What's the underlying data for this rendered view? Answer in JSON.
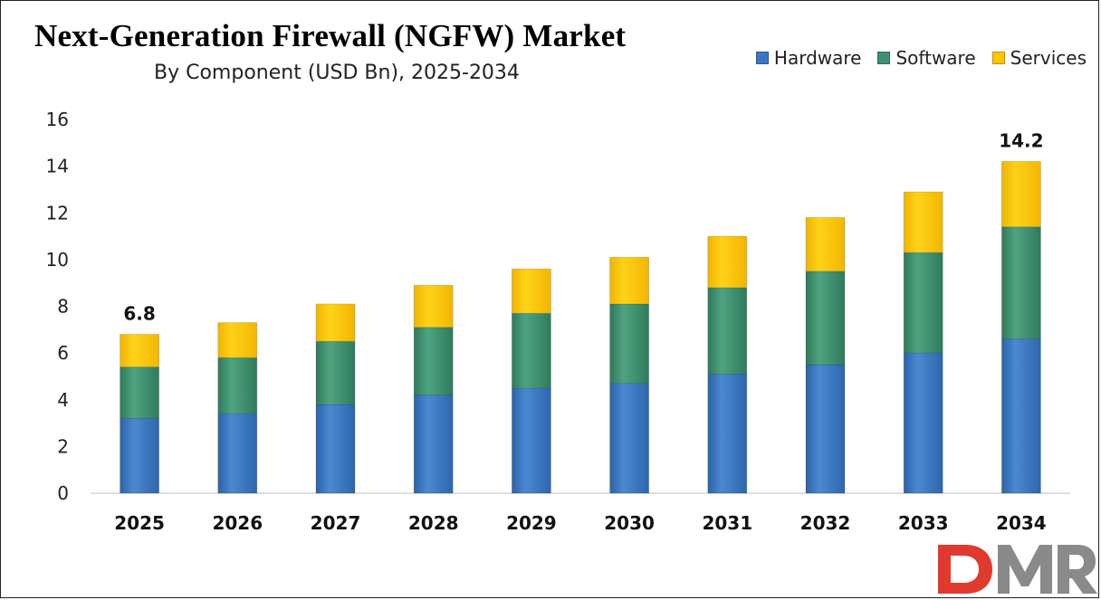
{
  "chart_data": {
    "type": "bar",
    "stacked": true,
    "title": "Next-Generation Firewall (NGFW) Market",
    "subtitle": "By Component (USD Bn), 2025-2034",
    "xlabel": "",
    "ylabel": "",
    "ylim": [
      0,
      16
    ],
    "yticks": [
      0,
      2,
      4,
      6,
      8,
      10,
      12,
      14,
      16
    ],
    "grid": false,
    "legend_position": "top-right",
    "categories": [
      "2025",
      "2026",
      "2027",
      "2028",
      "2029",
      "2030",
      "2031",
      "2032",
      "2033",
      "2034"
    ],
    "series": [
      {
        "name": "Hardware",
        "color": "#3a77c0",
        "values": [
          3.2,
          3.4,
          3.8,
          4.2,
          4.5,
          4.7,
          5.1,
          5.5,
          6.0,
          6.6
        ]
      },
      {
        "name": "Software",
        "color": "#3f9070",
        "values": [
          2.2,
          2.4,
          2.7,
          2.9,
          3.2,
          3.4,
          3.7,
          4.0,
          4.3,
          4.8
        ]
      },
      {
        "name": "Services",
        "color": "#ffc600",
        "values": [
          1.4,
          1.5,
          1.6,
          1.8,
          1.9,
          2.0,
          2.2,
          2.3,
          2.6,
          2.8
        ]
      }
    ],
    "annotations": [
      {
        "category": "2025",
        "text": "6.8"
      },
      {
        "category": "2034",
        "text": "14.2"
      }
    ]
  },
  "logo": {
    "text": "DMR",
    "colors": [
      "#e03a2f",
      "#8a8a8a"
    ]
  }
}
